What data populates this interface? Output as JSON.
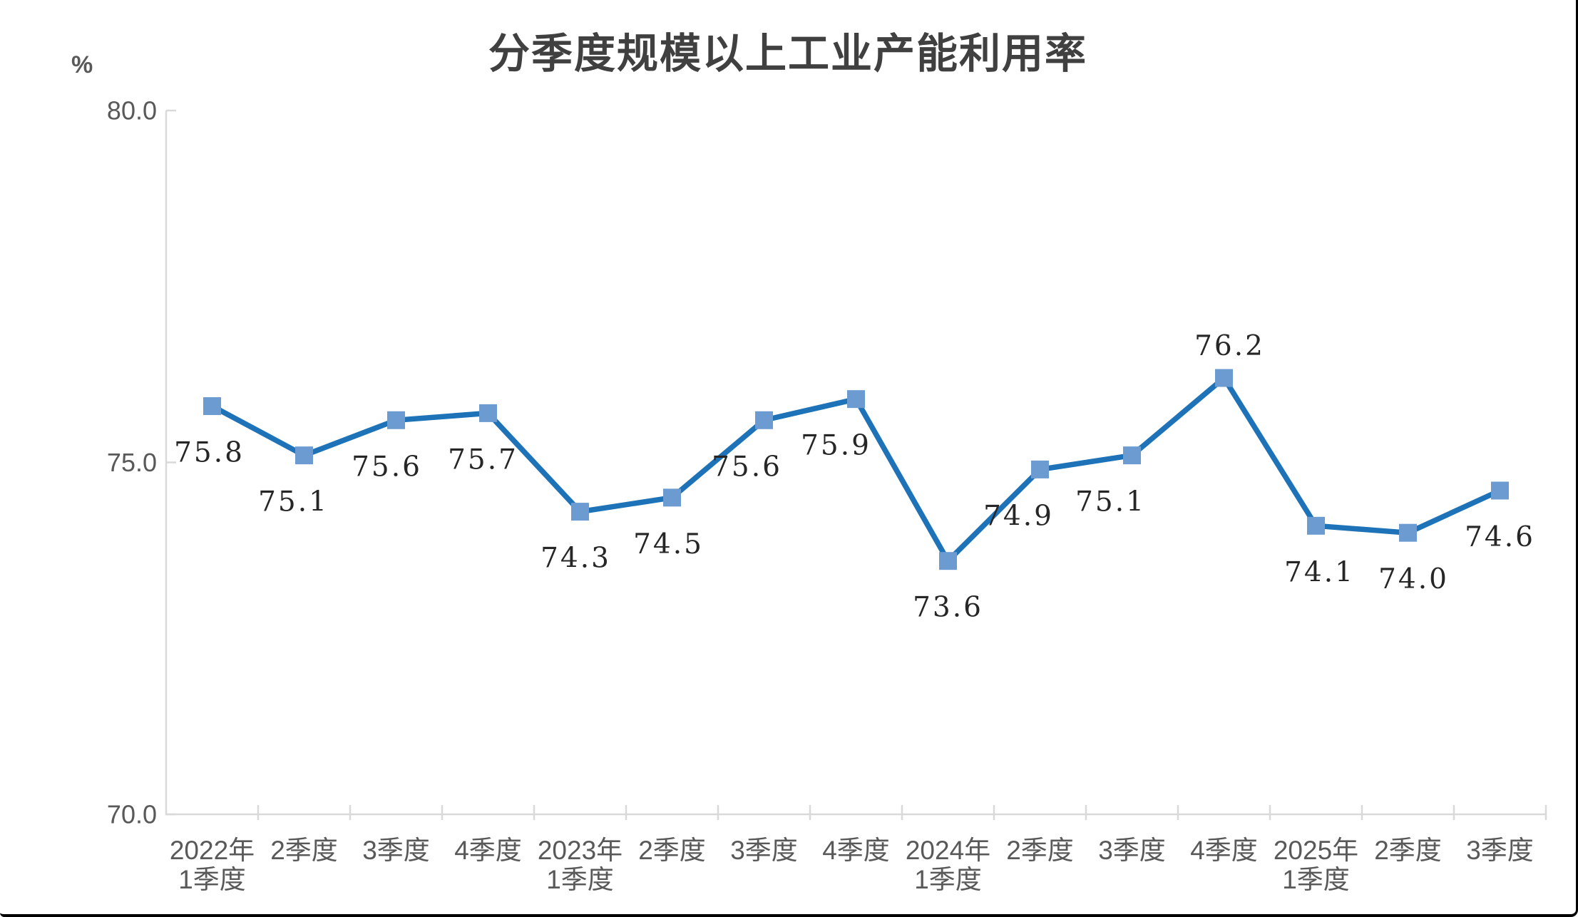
{
  "title": "分季度规模以上工业产能利用率",
  "y_axis_unit": "%",
  "chart_data": {
    "type": "line",
    "title": "分季度规模以上工业产能利用率",
    "ylabel": "%",
    "xlabel": "",
    "ylim": [
      70.0,
      80.0
    ],
    "grid": false,
    "legend_position": "none",
    "yticks": [
      {
        "value": 80.0,
        "label": "80.0"
      },
      {
        "value": 75.0,
        "label": "75.0"
      },
      {
        "value": 70.0,
        "label": "70.0"
      }
    ],
    "categories": [
      [
        "2022年",
        "1季度"
      ],
      [
        "2季度"
      ],
      [
        "3季度"
      ],
      [
        "4季度"
      ],
      [
        "2023年",
        "1季度"
      ],
      [
        "2季度"
      ],
      [
        "3季度"
      ],
      [
        "4季度"
      ],
      [
        "2024年",
        "1季度"
      ],
      [
        "2季度"
      ],
      [
        "3季度"
      ],
      [
        "4季度"
      ],
      [
        "2025年",
        "1季度"
      ],
      [
        "2季度"
      ],
      [
        "3季度"
      ]
    ],
    "values": [
      75.8,
      75.1,
      75.6,
      75.7,
      74.3,
      74.5,
      75.6,
      75.9,
      73.6,
      74.9,
      75.1,
      76.2,
      74.1,
      74.0,
      74.6
    ],
    "data_labels": [
      "75.8",
      "75.1",
      "75.6",
      "75.7",
      "74.3",
      "74.5",
      "75.6",
      "75.9",
      "73.6",
      "74.9",
      "75.1",
      "76.2",
      "74.1",
      "74.0",
      "74.6"
    ],
    "label_placement": [
      {
        "pos": "below",
        "dx": -4
      },
      {
        "pos": "below",
        "dx": -15
      },
      {
        "pos": "below",
        "dx": -13
      },
      {
        "pos": "below",
        "dx": -7
      },
      {
        "pos": "below",
        "dx": -6
      },
      {
        "pos": "below",
        "dx": -5
      },
      {
        "pos": "below",
        "dx": -24
      },
      {
        "pos": "below",
        "dx": -28
      },
      {
        "pos": "below",
        "dx": 0
      },
      {
        "pos": "below",
        "dx": -30
      },
      {
        "pos": "below",
        "dx": -30
      },
      {
        "pos": "above",
        "dx": 8
      },
      {
        "pos": "below",
        "dx": 5
      },
      {
        "pos": "below",
        "dx": 8
      },
      {
        "pos": "below",
        "dx": 0
      }
    ],
    "colors": {
      "line": "#1E73B8",
      "marker": "#6C9BD2",
      "axis": "#D9D9D9",
      "tick_label": "#595959",
      "data_label": "#262626",
      "title": "#404040"
    },
    "marker_shape": "square"
  },
  "frame": {
    "border_color": "#000000"
  }
}
